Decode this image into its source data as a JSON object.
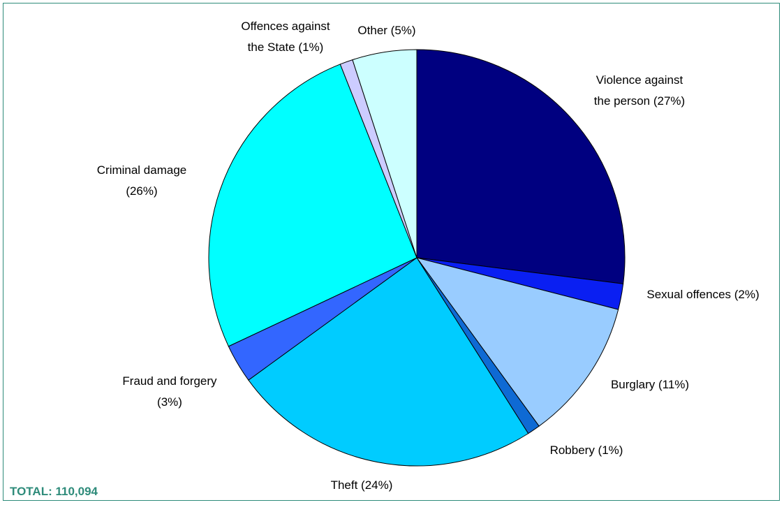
{
  "chart_data": {
    "type": "pie",
    "start_angle_deg": 0,
    "direction": "clockwise",
    "slices": [
      {
        "label": "Violence against the person (27%)",
        "value": 27,
        "color": "#000080"
      },
      {
        "label": "Sexual offences (2%)",
        "value": 2,
        "color": "#0a1ff2"
      },
      {
        "label": "Burglary (11%)",
        "value": 11,
        "color": "#99ccff"
      },
      {
        "label": "Robbery (1%)",
        "value": 1,
        "color": "#0e6ad4"
      },
      {
        "label": "Theft (24%)",
        "value": 24,
        "color": "#00ccff"
      },
      {
        "label": "Fraud and forgery (3%)",
        "value": 3,
        "color": "#3366ff"
      },
      {
        "label": "Criminal damage (26%)",
        "value": 26,
        "color": "#00ffff"
      },
      {
        "label": "Offences against the State (1%)",
        "value": 1,
        "color": "#ccccff"
      },
      {
        "label": "Other (5%)",
        "value": 5,
        "color": "#ccffff"
      }
    ],
    "labels_display": [
      [
        "Violence against",
        "the person (27%)"
      ],
      [
        "Sexual offences (2%)"
      ],
      [
        "Burglary (11%)"
      ],
      [
        "Robbery (1%)"
      ],
      [
        "Theft (24%)"
      ],
      [
        "Fraud and forgery",
        "(3%)"
      ],
      [
        "Criminal damage",
        "(26%)"
      ],
      [
        "Offences against",
        "the State (1%)"
      ],
      [
        "Other (5%)"
      ]
    ]
  },
  "footer": {
    "total_text": "TOTAL: 110,094",
    "total_color": "#2e8b7a"
  }
}
